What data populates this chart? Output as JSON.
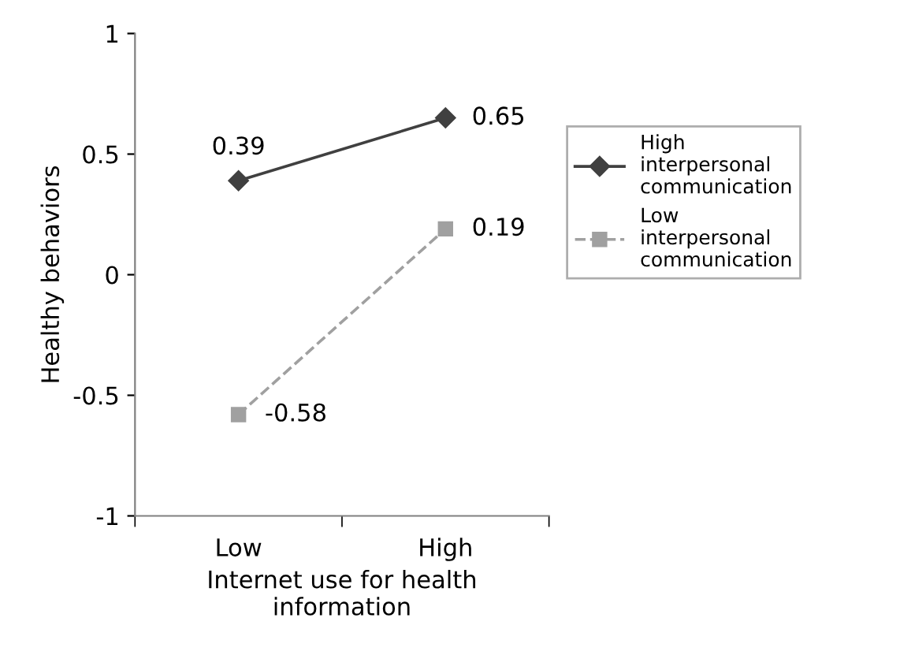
{
  "chart_data": {
    "type": "line",
    "xlabel": "Internet use for health\ninformation",
    "ylabel": "Healthy behaviors",
    "categories": [
      "Low",
      "High"
    ],
    "series": [
      {
        "name": "High interpersonal communication",
        "color": "#404040",
        "values": [
          0.39,
          0.65
        ],
        "marker": "diamond",
        "line_style": "solid"
      },
      {
        "name": "Low interpersonal communication",
        "color": "#a0a0a0",
        "values": [
          -0.58,
          0.19
        ],
        "marker": "square",
        "line_style": "dashed"
      }
    ],
    "ylim": [
      -1,
      1
    ],
    "yticks": [
      {
        "value": -1,
        "label": "-1"
      },
      {
        "value": -0.5,
        "label": "-0.5"
      },
      0,
      0.5,
      1
    ],
    "data_labels": true,
    "legend": "right",
    "grid": false
  }
}
